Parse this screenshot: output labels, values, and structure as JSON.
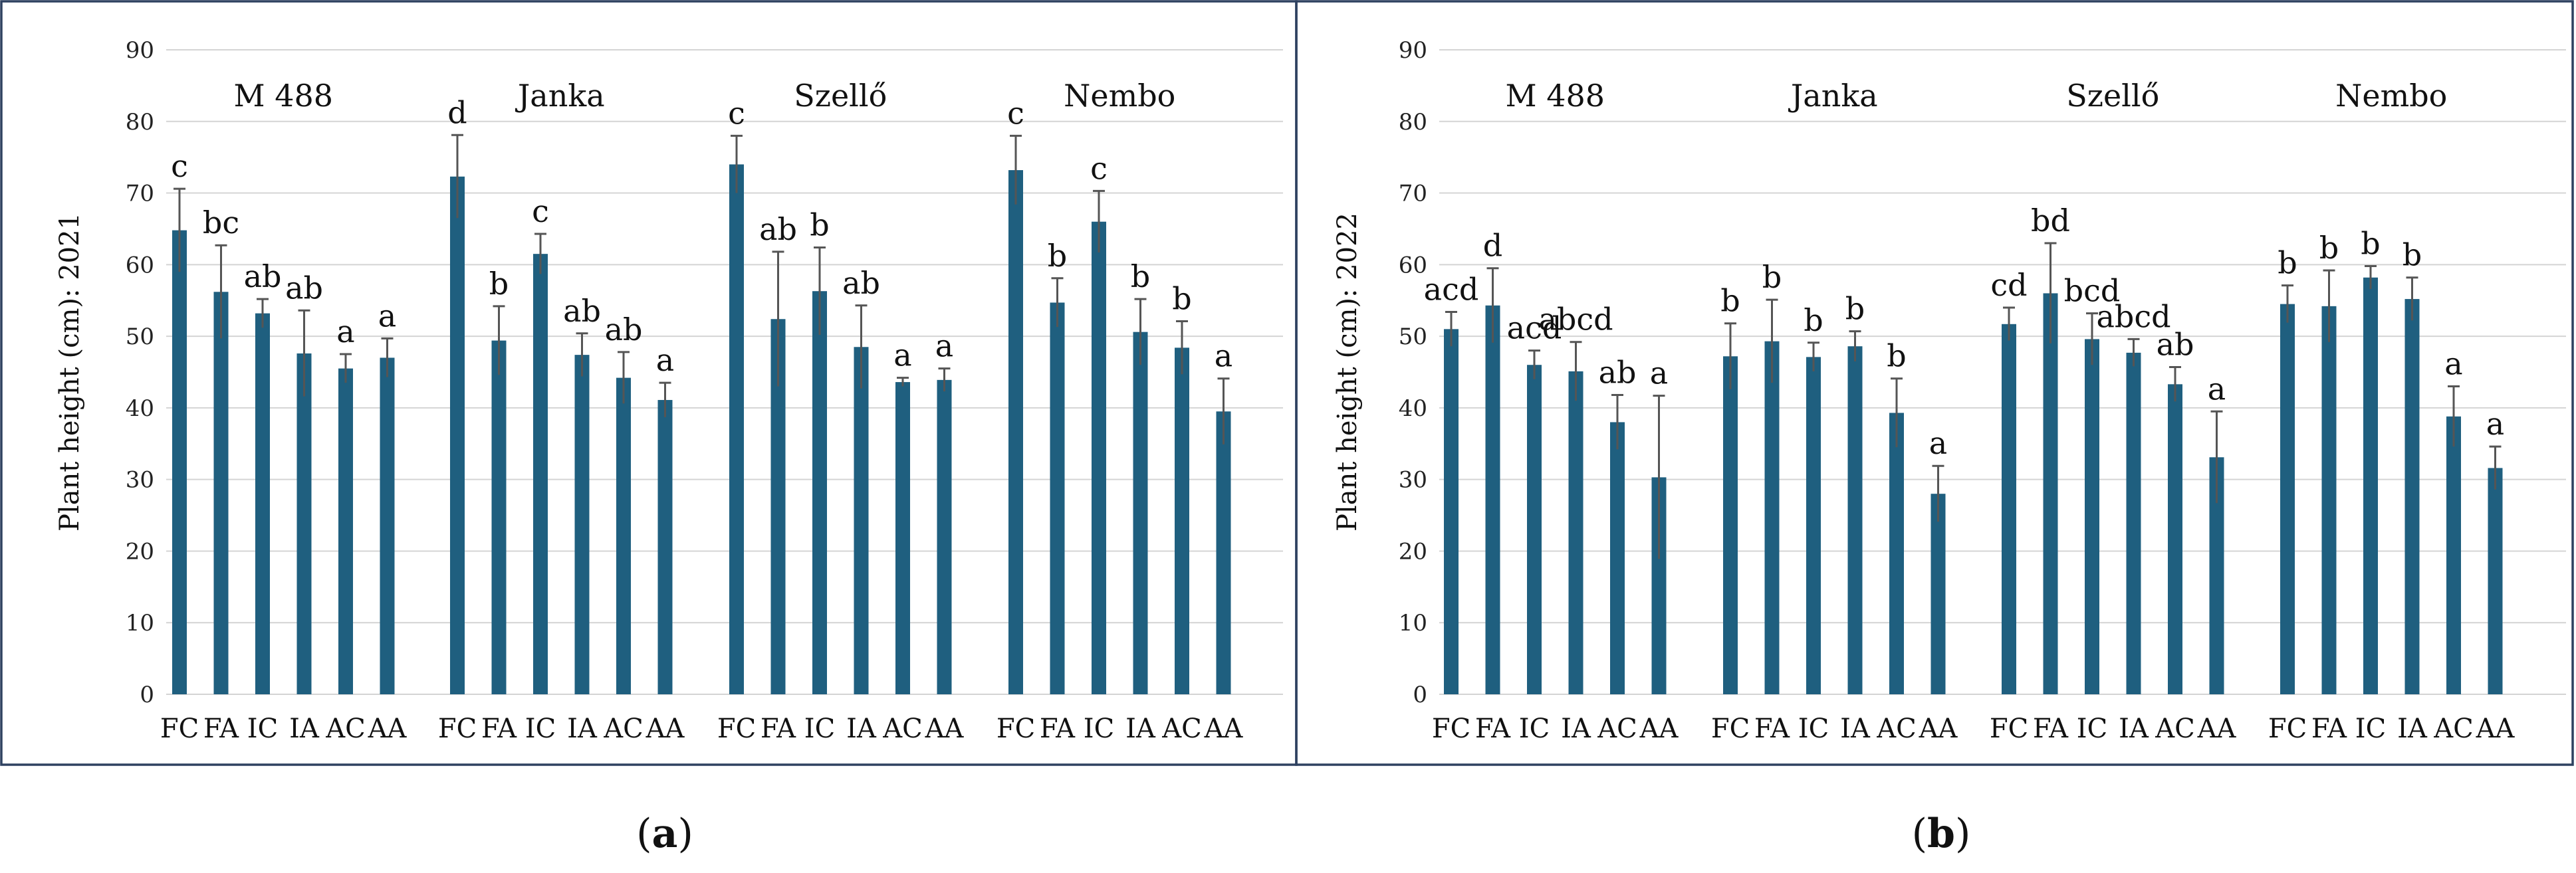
{
  "chart_data": [
    {
      "panel_label": "(a)",
      "panel_letter": "a",
      "type": "bar",
      "ylabel": "Plant height (cm): 2021",
      "ylim": [
        0,
        90
      ],
      "yticks": [
        0,
        10,
        20,
        30,
        40,
        50,
        60,
        70,
        80,
        90
      ],
      "categories": [
        "FC",
        "FA",
        "IC",
        "IA",
        "AC",
        "AA"
      ],
      "groups": [
        {
          "name": "M 488",
          "values": [
            64.8,
            56.2,
            53.2,
            47.6,
            45.5,
            47.0
          ],
          "errors": [
            5.8,
            6.5,
            2.0,
            6.0,
            2.0,
            2.7
          ],
          "letters": [
            "c",
            "bc",
            "ab",
            "ab",
            "a",
            "a"
          ]
        },
        {
          "name": "Janka",
          "values": [
            72.3,
            49.4,
            61.5,
            47.4,
            44.2,
            41.1
          ],
          "errors": [
            5.8,
            4.8,
            2.8,
            3.0,
            3.6,
            2.4
          ],
          "letters": [
            "d",
            "b",
            "c",
            "ab",
            "ab",
            "a"
          ]
        },
        {
          "name": "Szellő",
          "values": [
            74.0,
            52.4,
            56.3,
            48.5,
            43.6,
            43.9
          ],
          "errors": [
            4.0,
            9.4,
            6.1,
            5.8,
            0.6,
            1.6
          ],
          "letters": [
            "c",
            "ab",
            "b",
            "ab",
            "a",
            "a"
          ]
        },
        {
          "name": "Nembo",
          "values": [
            73.2,
            54.7,
            66.0,
            50.6,
            48.4,
            39.5
          ],
          "errors": [
            4.8,
            3.4,
            4.3,
            4.6,
            3.7,
            4.6
          ],
          "letters": [
            "c",
            "b",
            "c",
            "b",
            "b",
            "a"
          ]
        }
      ]
    },
    {
      "panel_label": "(b)",
      "panel_letter": "b",
      "type": "bar",
      "ylabel": "Plant height (cm):  2022",
      "ylim": [
        0,
        90
      ],
      "yticks": [
        0,
        10,
        20,
        30,
        40,
        50,
        60,
        70,
        80,
        90
      ],
      "categories": [
        "FC",
        "FA",
        "IC",
        "IA",
        "AC",
        "AA"
      ],
      "groups": [
        {
          "name": "M 488",
          "values": [
            51.0,
            54.3,
            46.0,
            45.1,
            38.0,
            30.3
          ],
          "errors": [
            2.4,
            5.2,
            2.0,
            4.1,
            3.8,
            11.4
          ],
          "letters": [
            "acd",
            "d",
            "acd",
            "abcd",
            "ab",
            "a"
          ]
        },
        {
          "name": "Janka",
          "values": [
            47.2,
            49.3,
            47.1,
            48.6,
            39.3,
            28.0
          ],
          "errors": [
            4.6,
            5.8,
            2.0,
            2.1,
            4.8,
            3.9
          ],
          "letters": [
            "b",
            "b",
            "b",
            "b",
            "b",
            "a"
          ]
        },
        {
          "name": "Szellő",
          "values": [
            51.7,
            56.0,
            49.6,
            47.7,
            43.3,
            33.1
          ],
          "errors": [
            2.3,
            7.0,
            3.6,
            1.9,
            2.4,
            6.4
          ],
          "letters": [
            "cd",
            "bd",
            "bcd",
            "abcd",
            "ab",
            "a"
          ]
        },
        {
          "name": "Nembo",
          "values": [
            54.5,
            54.2,
            58.2,
            55.2,
            38.8,
            31.6
          ],
          "errors": [
            2.6,
            5.0,
            1.6,
            3.0,
            4.2,
            3.0
          ],
          "letters": [
            "b",
            "b",
            "b",
            "b",
            "a",
            "a"
          ]
        }
      ]
    }
  ]
}
